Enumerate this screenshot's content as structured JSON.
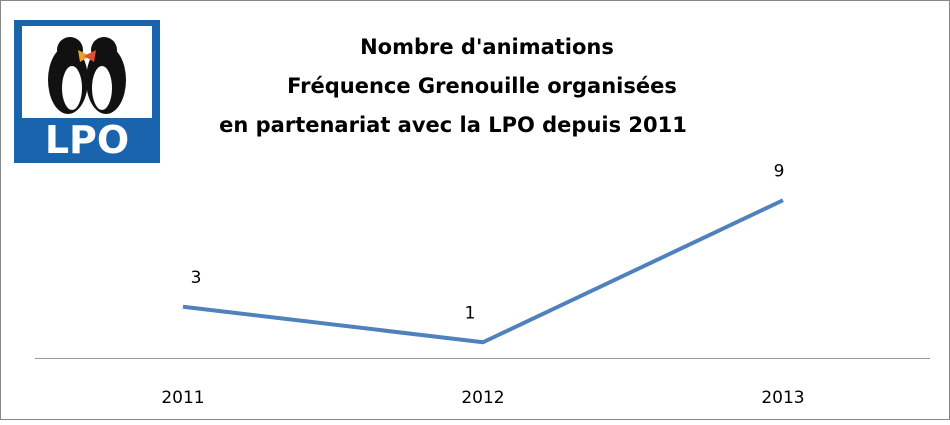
{
  "chart_data": {
    "type": "line",
    "title": [
      "Nombre d'animations",
      "Fréquence Grenouille  organisées",
      "en partenariat avec la LPO depuis 2011"
    ],
    "logo": "LPO",
    "categories": [
      "2011",
      "2012",
      "2013"
    ],
    "series": [
      {
        "name": "Nombre d'animations",
        "color": "#4f81bd",
        "values": [
          3,
          1,
          9
        ]
      }
    ],
    "ylim": [
      0,
      10
    ]
  }
}
